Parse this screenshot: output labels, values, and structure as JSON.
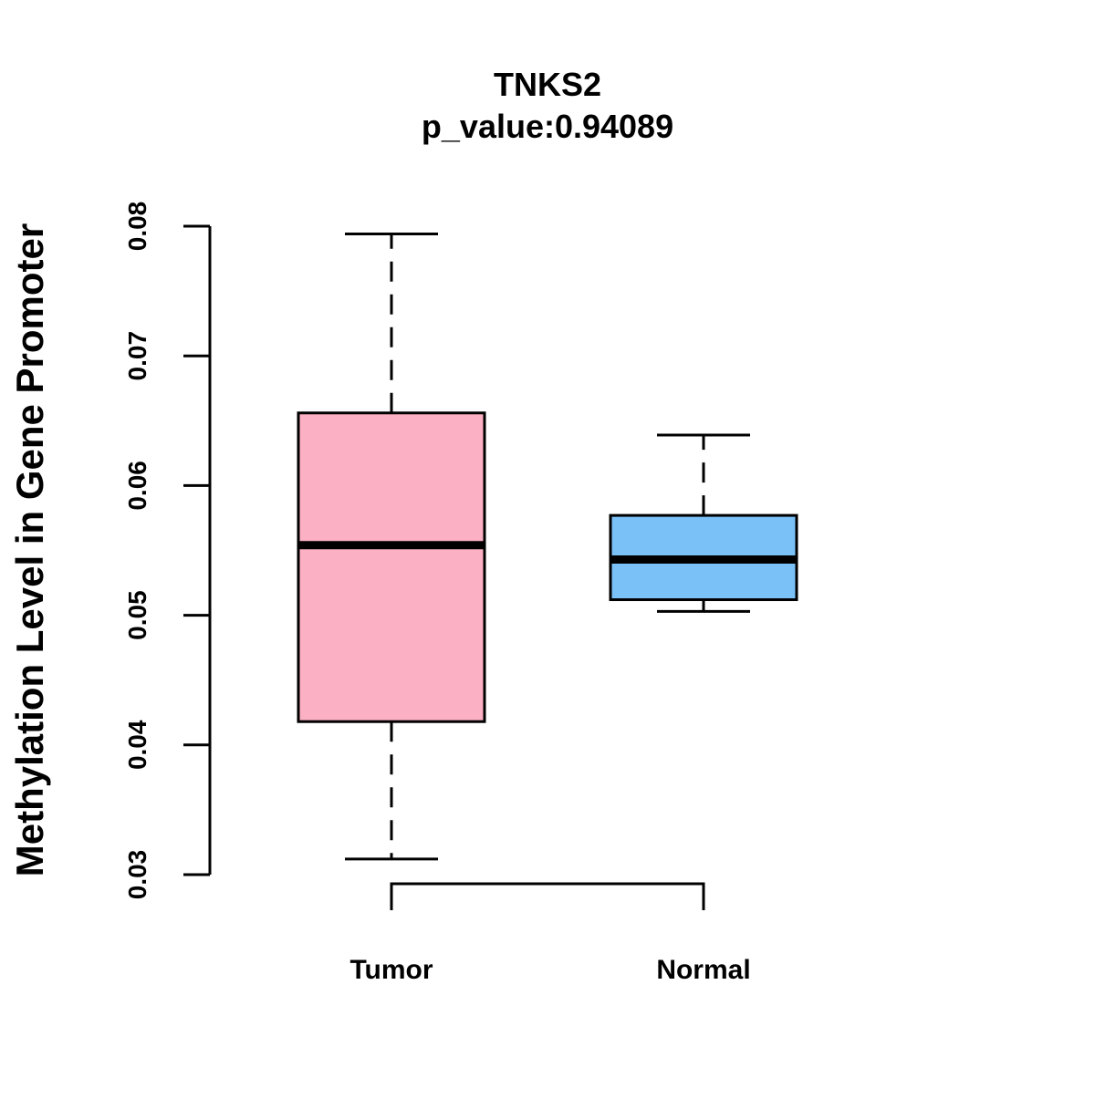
{
  "chart_data": {
    "type": "boxplot",
    "title": "TNKS2",
    "subtitle": "p_value:0.94089",
    "xlabel": "",
    "ylabel": "Methylation Level in Gene Promoter",
    "ylim": [
      0.03,
      0.08
    ],
    "y_ticks": [
      0.03,
      0.04,
      0.05,
      0.06,
      0.07,
      0.08
    ],
    "y_tick_labels": [
      "0.03",
      "0.04",
      "0.05",
      "0.06",
      "0.07",
      "0.08"
    ],
    "grid": false,
    "groups": [
      {
        "name": "Tumor",
        "color": "#fbb1c3",
        "whisker_low": 0.0312,
        "q1": 0.0418,
        "median": 0.0554,
        "q3": 0.0656,
        "whisker_high": 0.0794
      },
      {
        "name": "Normal",
        "color": "#7ac1f8",
        "whisker_low": 0.0503,
        "q1": 0.0512,
        "median": 0.0543,
        "q3": 0.0577,
        "whisker_high": 0.0639
      }
    ],
    "comparison_bracket": [
      "Tumor",
      "Normal"
    ]
  }
}
